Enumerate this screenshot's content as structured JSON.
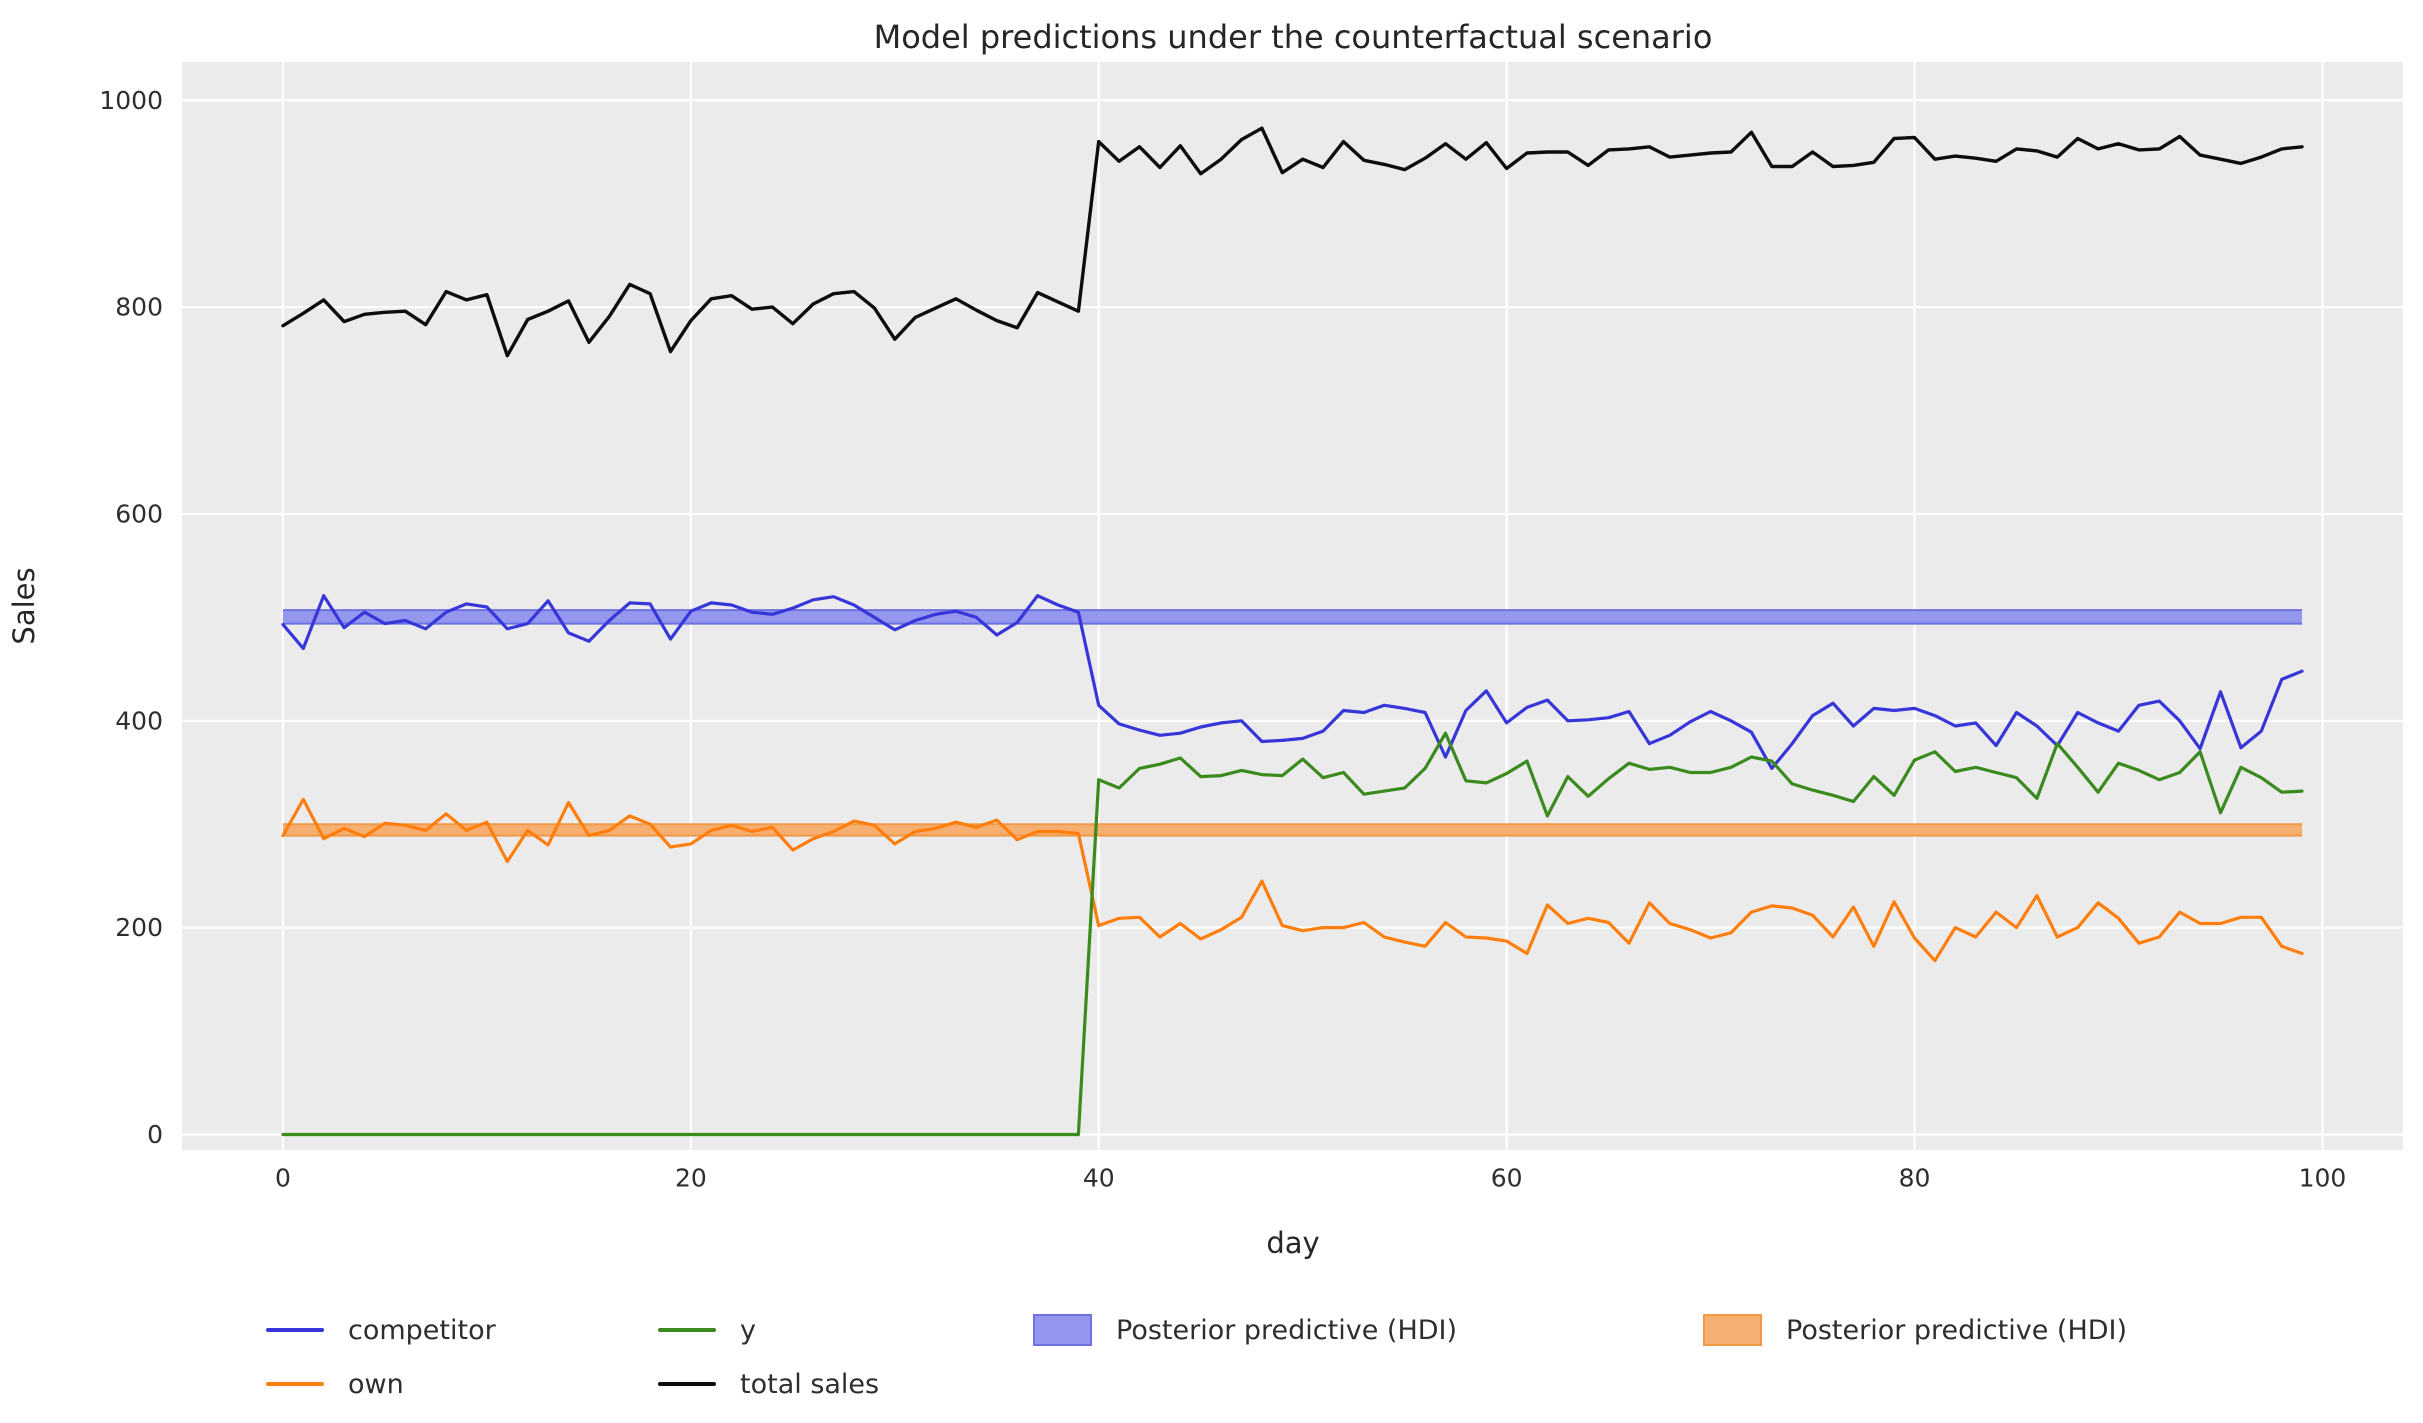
{
  "chart_data": {
    "type": "line",
    "title": "Model predictions under the counterfactual scenario",
    "xlabel": "day",
    "ylabel": "Sales",
    "x": {
      "start": 0,
      "step": 1,
      "count": 100
    },
    "axes": {
      "xlim": [
        -4.95,
        103.95
      ],
      "ylim": [
        -15,
        1037
      ],
      "xticks": [
        0,
        20,
        40,
        60,
        80,
        100
      ],
      "yticks": [
        0,
        200,
        400,
        600,
        800,
        1000
      ],
      "grid": true,
      "plot_bg": "#ebebeb",
      "grid_color": "#ffffff",
      "text_color": "#2e2e2e"
    },
    "bands": [
      {
        "label": "Posterior predictive (HDI)",
        "series": "competitor",
        "lo": 494,
        "hi": 507,
        "x_start": 0,
        "x_end": 99,
        "fill": "#9597ee",
        "edge": "#6e71e0"
      },
      {
        "label": "Posterior predictive (HDI)",
        "series": "own",
        "lo": 289,
        "hi": 300,
        "x_start": 0,
        "x_end": 99,
        "fill": "#f6ae71",
        "edge": "#ef9a46"
      }
    ],
    "series": [
      {
        "name": "competitor",
        "color": "#3636d9",
        "width": 3.2,
        "values": [
          493,
          470,
          521,
          490,
          505,
          494,
          497,
          489,
          505,
          513,
          510,
          489,
          494,
          516,
          485,
          477,
          497,
          514,
          513,
          479,
          506,
          514,
          512,
          505,
          503,
          509,
          517,
          520,
          512,
          500,
          488,
          497,
          503,
          506,
          500,
          483,
          495,
          521,
          512,
          505,
          415,
          397,
          391,
          386,
          388,
          394,
          398,
          400,
          380,
          381,
          383,
          390,
          410,
          408,
          415,
          412,
          408,
          365,
          410,
          429,
          398,
          413,
          420,
          400,
          401,
          403,
          409,
          378,
          386,
          399,
          409,
          400,
          389,
          354,
          378,
          405,
          417,
          395,
          412,
          410,
          412,
          405,
          395,
          398,
          376,
          408,
          395,
          376,
          408,
          398,
          390,
          415,
          419,
          400,
          373,
          428,
          374,
          390,
          440,
          448
        ]
      },
      {
        "name": "own",
        "color": "#ff7f0e",
        "width": 3.2,
        "values": [
          289,
          324,
          286,
          296,
          288,
          301,
          299,
          294,
          310,
          294,
          302,
          264,
          294,
          280,
          321,
          289,
          294,
          308,
          300,
          278,
          281,
          294,
          299,
          293,
          297,
          275,
          286,
          293,
          303,
          299,
          281,
          293,
          296,
          302,
          297,
          304,
          285,
          293,
          293,
          291,
          202,
          209,
          210,
          191,
          204,
          189,
          198,
          210,
          245,
          202,
          197,
          200,
          200,
          205,
          191,
          186,
          182,
          205,
          191,
          190,
          187,
          175,
          222,
          204,
          209,
          205,
          185,
          224,
          204,
          198,
          190,
          195,
          215,
          221,
          219,
          212,
          191,
          220,
          182,
          225,
          190,
          168,
          200,
          191,
          215,
          200,
          231,
          191,
          200,
          224,
          209,
          185,
          191,
          215,
          204,
          204,
          210,
          210,
          182,
          175
        ]
      },
      {
        "name": "y",
        "color": "#3a8a1e",
        "width": 3.2,
        "values": [
          0,
          0,
          0,
          0,
          0,
          0,
          0,
          0,
          0,
          0,
          0,
          0,
          0,
          0,
          0,
          0,
          0,
          0,
          0,
          0,
          0,
          0,
          0,
          0,
          0,
          0,
          0,
          0,
          0,
          0,
          0,
          0,
          0,
          0,
          0,
          0,
          0,
          0,
          0,
          0,
          343,
          335,
          354,
          358,
          364,
          346,
          347,
          352,
          348,
          347,
          363,
          345,
          350,
          329,
          332,
          335,
          354,
          388,
          342,
          340,
          349,
          361,
          308,
          346,
          327,
          344,
          359,
          353,
          355,
          350,
          350,
          355,
          365,
          361,
          339,
          333,
          328,
          322,
          346,
          328,
          362,
          370,
          351,
          355,
          350,
          345,
          325,
          378,
          355,
          331,
          359,
          352,
          343,
          350,
          370,
          311,
          355,
          345,
          331,
          332
        ]
      },
      {
        "name": "total sales",
        "color": "#0d0d0d",
        "width": 3.4,
        "values": [
          782,
          794,
          807,
          786,
          793,
          795,
          796,
          783,
          815,
          807,
          812,
          753,
          788,
          796,
          806,
          766,
          791,
          822,
          813,
          757,
          787,
          808,
          811,
          798,
          800,
          784,
          803,
          813,
          815,
          799,
          769,
          790,
          799,
          808,
          797,
          787,
          780,
          814,
          805,
          796,
          960,
          941,
          955,
          935,
          956,
          929,
          943,
          962,
          973,
          930,
          943,
          935,
          960,
          942,
          938,
          933,
          944,
          958,
          943,
          959,
          934,
          949,
          950,
          950,
          937,
          952,
          953,
          955,
          945,
          947,
          949,
          950,
          969,
          936,
          936,
          950,
          936,
          937,
          940,
          963,
          964,
          943,
          946,
          944,
          941,
          953,
          951,
          945,
          963,
          953,
          958,
          952,
          953,
          965,
          947,
          943,
          939,
          945,
          953,
          955
        ]
      }
    ],
    "legend": {
      "items": [
        {
          "label": "competitor",
          "type": "line",
          "color": "#3636d9"
        },
        {
          "label": "own",
          "type": "line",
          "color": "#ff7f0e"
        },
        {
          "label": "y",
          "type": "line",
          "color": "#3a8a1e"
        },
        {
          "label": "total sales",
          "type": "line",
          "color": "#0d0d0d"
        },
        {
          "label": "Posterior predictive (HDI)",
          "type": "patch",
          "color": "#9597ee",
          "edge": "#6e71e0"
        },
        {
          "label": "Posterior predictive (HDI)",
          "type": "patch",
          "color": "#f6ae71",
          "edge": "#ef9a46"
        }
      ]
    }
  }
}
